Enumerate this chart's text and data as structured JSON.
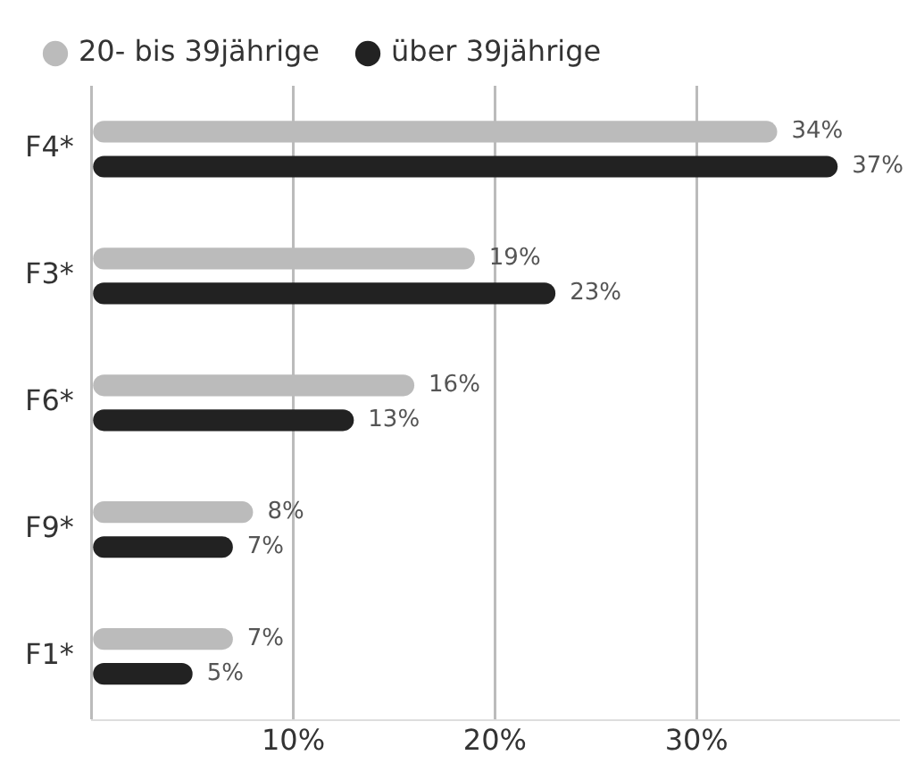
{
  "chart_data": {
    "type": "bar",
    "orientation": "horizontal",
    "categories": [
      "F4*",
      "F3*",
      "F6*",
      "F9*",
      "F1*"
    ],
    "series": [
      {
        "name": "20- bis 39jährige",
        "color": "#bbbbbb",
        "values": [
          34,
          19,
          16,
          8,
          7
        ],
        "value_labels": [
          "34%",
          "19%",
          "16%",
          "8%",
          "7%"
        ]
      },
      {
        "name": "über 39jährige",
        "color": "#222222",
        "values": [
          37,
          23,
          13,
          7,
          5
        ],
        "value_labels": [
          "37%",
          "23%",
          "13%",
          "7%",
          "5%"
        ]
      }
    ],
    "xlim": [
      0,
      40
    ],
    "xticks": [
      {
        "value": 0,
        "label": null
      },
      {
        "value": 10,
        "label": "10%"
      },
      {
        "value": 20,
        "label": "20%"
      },
      {
        "value": 30,
        "label": "30%"
      }
    ],
    "grid": "x",
    "legend": "top left",
    "marker": "circle"
  }
}
